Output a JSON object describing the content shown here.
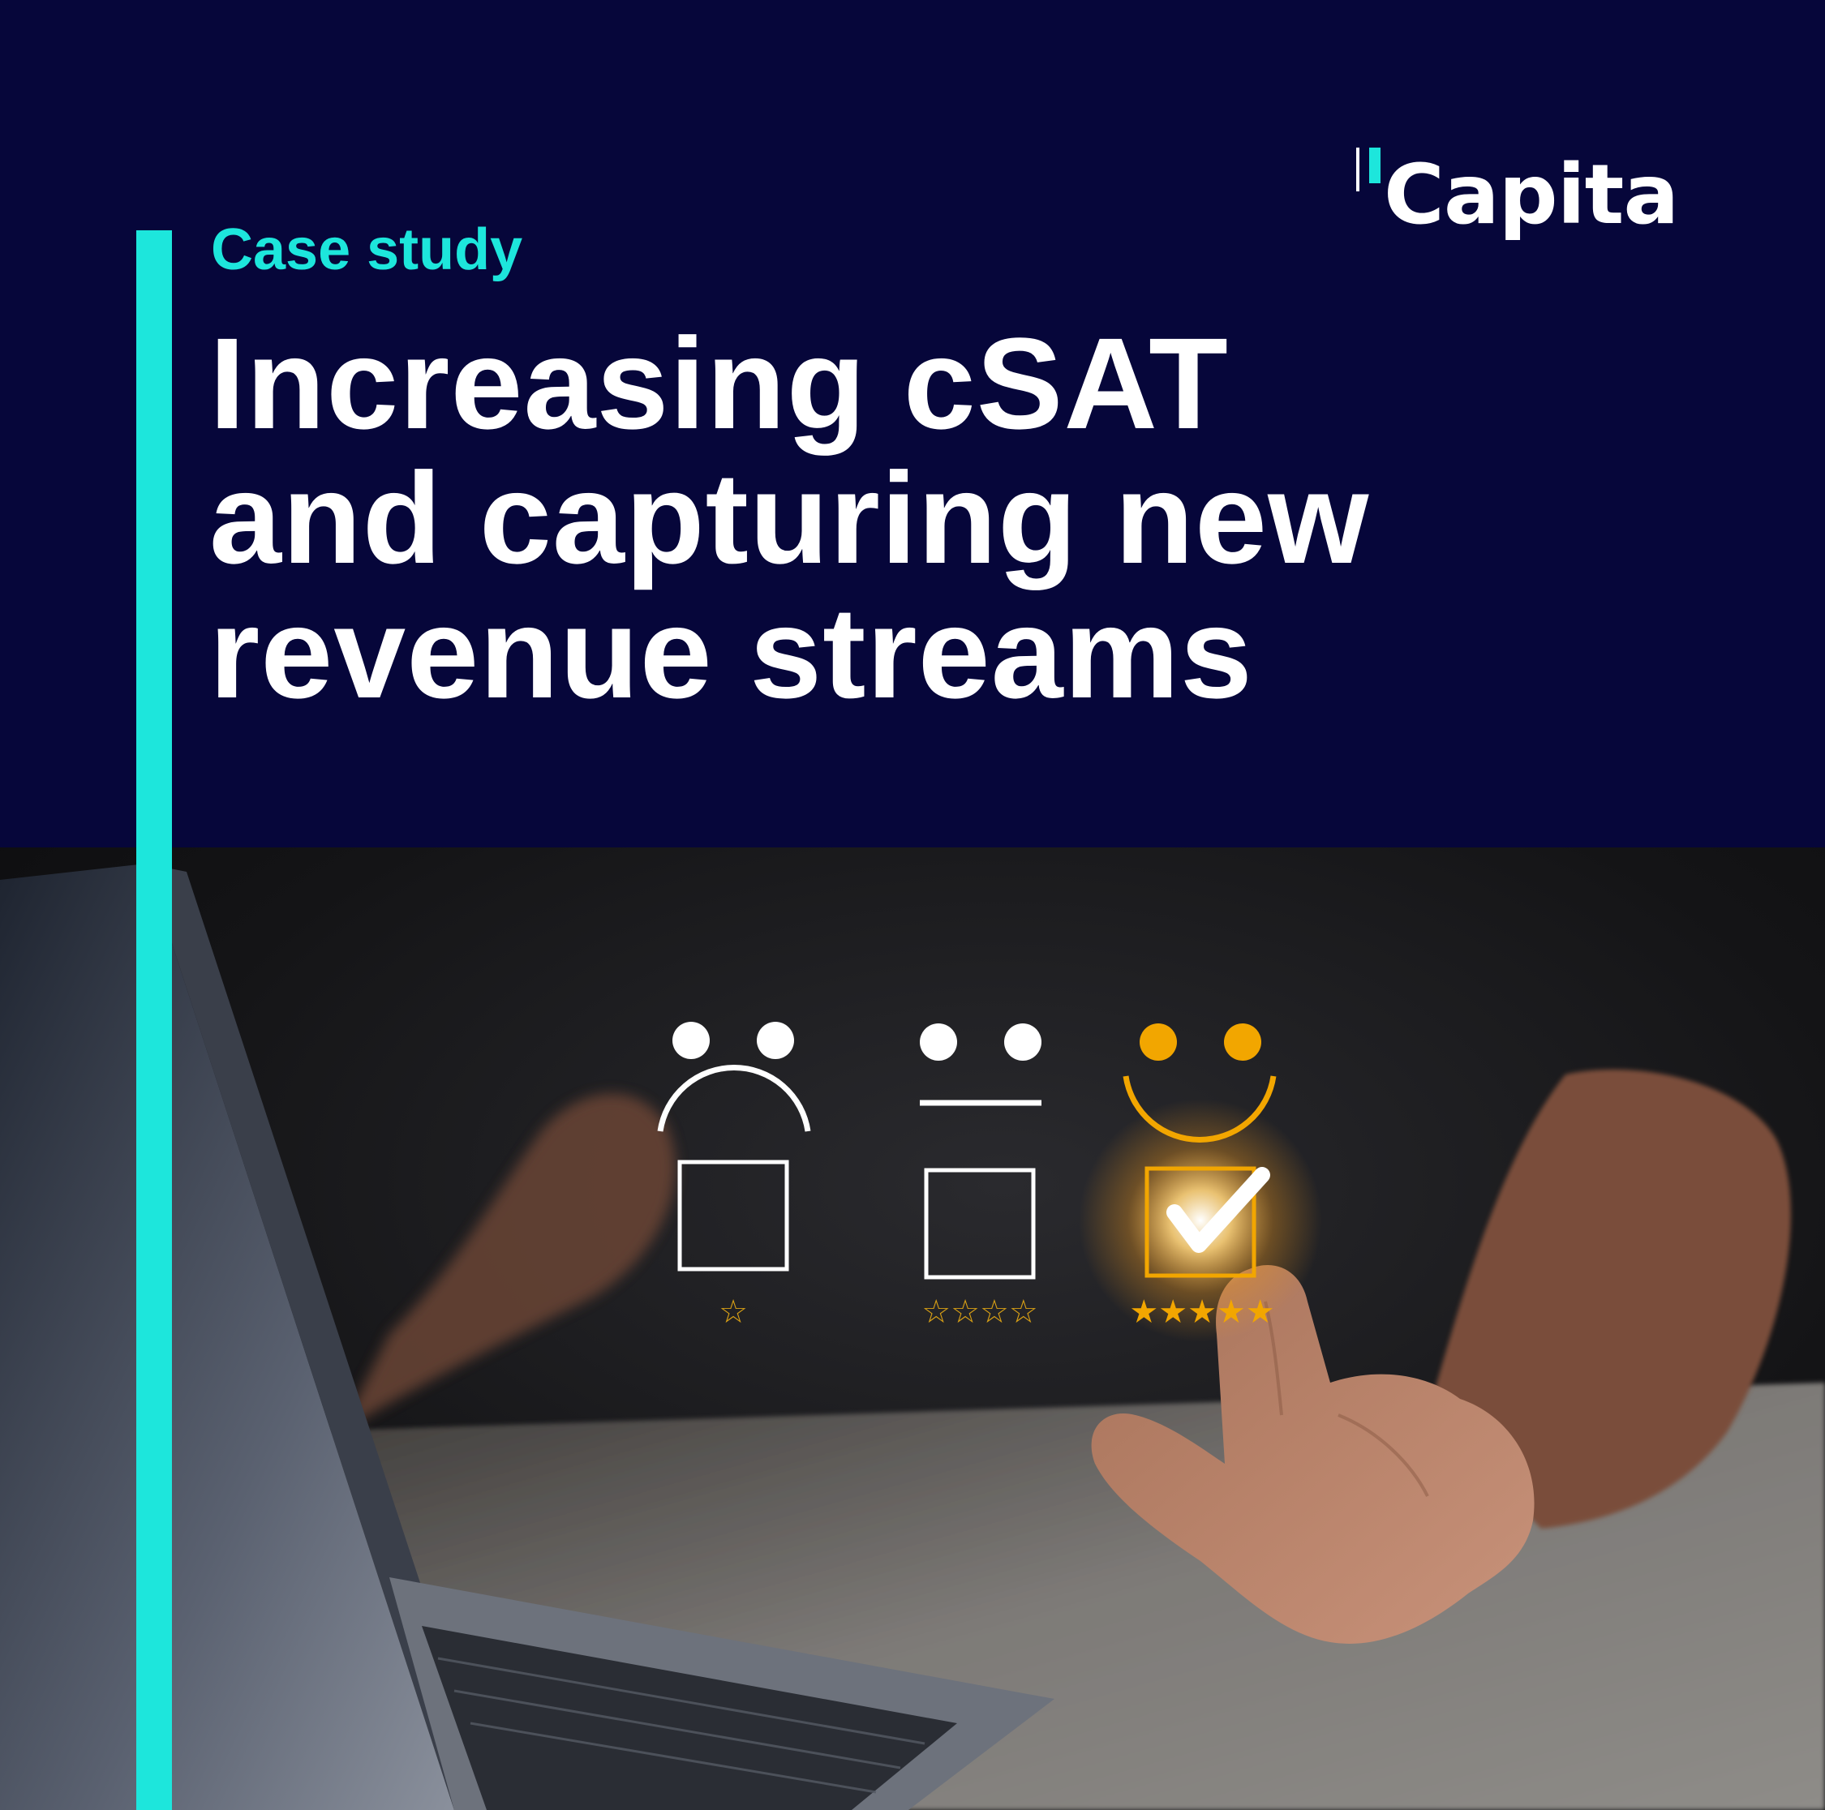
{
  "brand": {
    "logo_text": "Capita",
    "accent_color": "#1de6dc",
    "navy_color": "#06063a"
  },
  "header": {
    "kicker": "Case study",
    "title_lines": [
      "Increasing cSAT",
      "and capturing new",
      "revenue streams"
    ]
  },
  "photo": {
    "rating_options": [
      {
        "face": "sad",
        "checked": false,
        "stars": "☆"
      },
      {
        "face": "neutral",
        "checked": false,
        "stars": "☆☆☆☆"
      },
      {
        "face": "happy",
        "checked": true,
        "stars": "★★★★★"
      }
    ]
  }
}
